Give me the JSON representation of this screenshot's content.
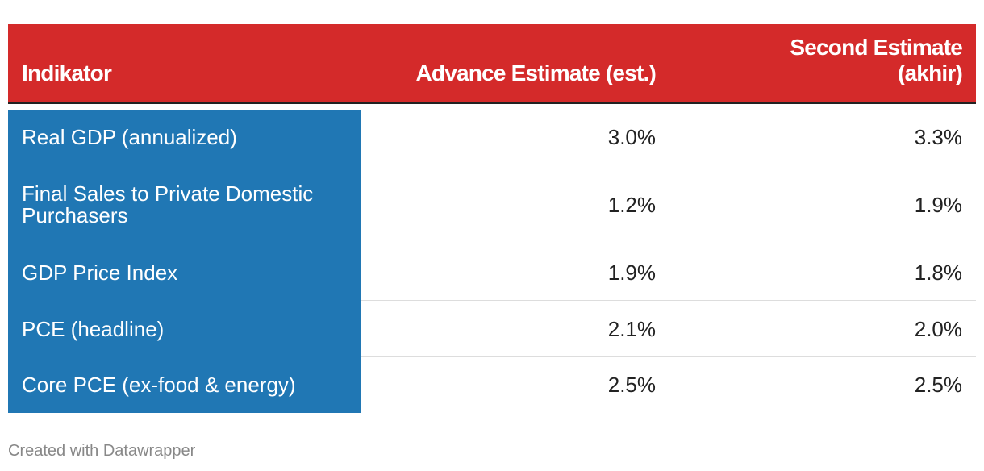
{
  "table": {
    "header": [
      "Indikator",
      "Advance Estimate (est.)",
      "Second Estimate (akhir)"
    ],
    "rows": [
      [
        "Real GDP (annualized)",
        "3.0%",
        "3.3%"
      ],
      [
        "Final Sales to Private Domestic Purchasers",
        "1.2%",
        "1.9%"
      ],
      [
        "GDP Price Index",
        "1.9%",
        "1.8%"
      ],
      [
        "PCE (headline)",
        "2.1%",
        "2.0%"
      ],
      [
        "Core PCE (ex-food & energy)",
        "2.5%",
        "2.5%"
      ]
    ]
  },
  "footer": "Created with Datawrapper"
}
